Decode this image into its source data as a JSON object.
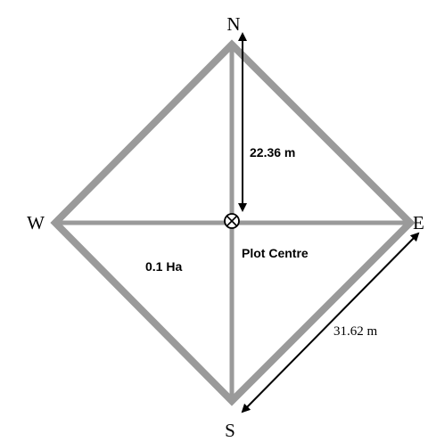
{
  "compass": {
    "north": "N",
    "east": "E",
    "south": "S",
    "west": "W"
  },
  "labels": {
    "radius": "22.36 m",
    "centre": "Plot Centre",
    "area": "0.1 Ha",
    "side": "31.62 m"
  }
}
